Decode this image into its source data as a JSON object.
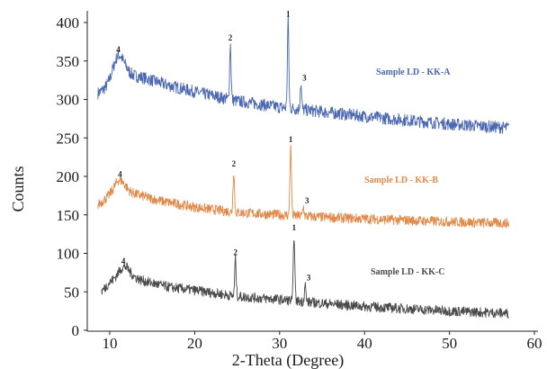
{
  "chart_data": {
    "type": "line",
    "title": "",
    "xlabel": "2-Theta (Degree)",
    "ylabel": "Counts",
    "xlim": [
      7,
      60
    ],
    "ylim": [
      0,
      410
    ],
    "xticks": [
      10,
      20,
      30,
      40,
      50,
      60
    ],
    "yticks": [
      0,
      50,
      100,
      150,
      200,
      250,
      300,
      350,
      400
    ],
    "grid": false,
    "series": [
      {
        "name": "Sample LD - KK-A",
        "color": "#4a67b0",
        "x_range": [
          8.6,
          57
        ],
        "baseline": [
          [
            8.6,
            308
          ],
          [
            10,
            318
          ],
          [
            12,
            333
          ],
          [
            14,
            328
          ],
          [
            17,
            318
          ],
          [
            20,
            310
          ],
          [
            25,
            298
          ],
          [
            30,
            290
          ],
          [
            35,
            284
          ],
          [
            40,
            278
          ],
          [
            45,
            273
          ],
          [
            50,
            268
          ],
          [
            57,
            263
          ]
        ],
        "peaks": [
          {
            "label": "4",
            "x": 11.0,
            "y": 357
          },
          {
            "label": "2",
            "x": 24.2,
            "y": 372
          },
          {
            "label": "1",
            "x": 31.0,
            "y": 403
          },
          {
            "label": "3",
            "x": 32.5,
            "y": 320
          }
        ]
      },
      {
        "name": "Sample LD - KK-B",
        "color": "#e08a4a",
        "x_range": [
          8.6,
          57
        ],
        "baseline": [
          [
            8.6,
            163
          ],
          [
            10,
            175
          ],
          [
            11,
            182
          ],
          [
            13,
            177
          ],
          [
            16,
            168
          ],
          [
            20,
            160
          ],
          [
            25,
            153
          ],
          [
            30,
            150
          ],
          [
            35,
            147
          ],
          [
            40,
            145
          ],
          [
            45,
            143
          ],
          [
            50,
            141
          ],
          [
            57,
            139
          ]
        ],
        "peaks": [
          {
            "label": "4",
            "x": 11.2,
            "y": 195
          },
          {
            "label": "2",
            "x": 24.6,
            "y": 208
          },
          {
            "label": "1",
            "x": 31.3,
            "y": 240
          },
          {
            "label": "3",
            "x": 32.8,
            "y": 160
          }
        ]
      },
      {
        "name": "Sample LD - KK-C",
        "color": "#4a4a4a",
        "x_range": [
          9.0,
          57
        ],
        "baseline": [
          [
            9.0,
            50
          ],
          [
            10,
            62
          ],
          [
            12,
            72
          ],
          [
            14,
            64
          ],
          [
            17,
            56
          ],
          [
            20,
            52
          ],
          [
            25,
            44
          ],
          [
            30,
            40
          ],
          [
            35,
            35
          ],
          [
            40,
            31
          ],
          [
            45,
            28
          ],
          [
            50,
            25
          ],
          [
            57,
            22
          ]
        ],
        "peaks": [
          {
            "label": "4",
            "x": 11.6,
            "y": 82
          },
          {
            "label": "2",
            "x": 24.8,
            "y": 93
          },
          {
            "label": "1",
            "x": 31.7,
            "y": 125
          },
          {
            "label": "3",
            "x": 33.0,
            "y": 60
          }
        ]
      }
    ]
  }
}
